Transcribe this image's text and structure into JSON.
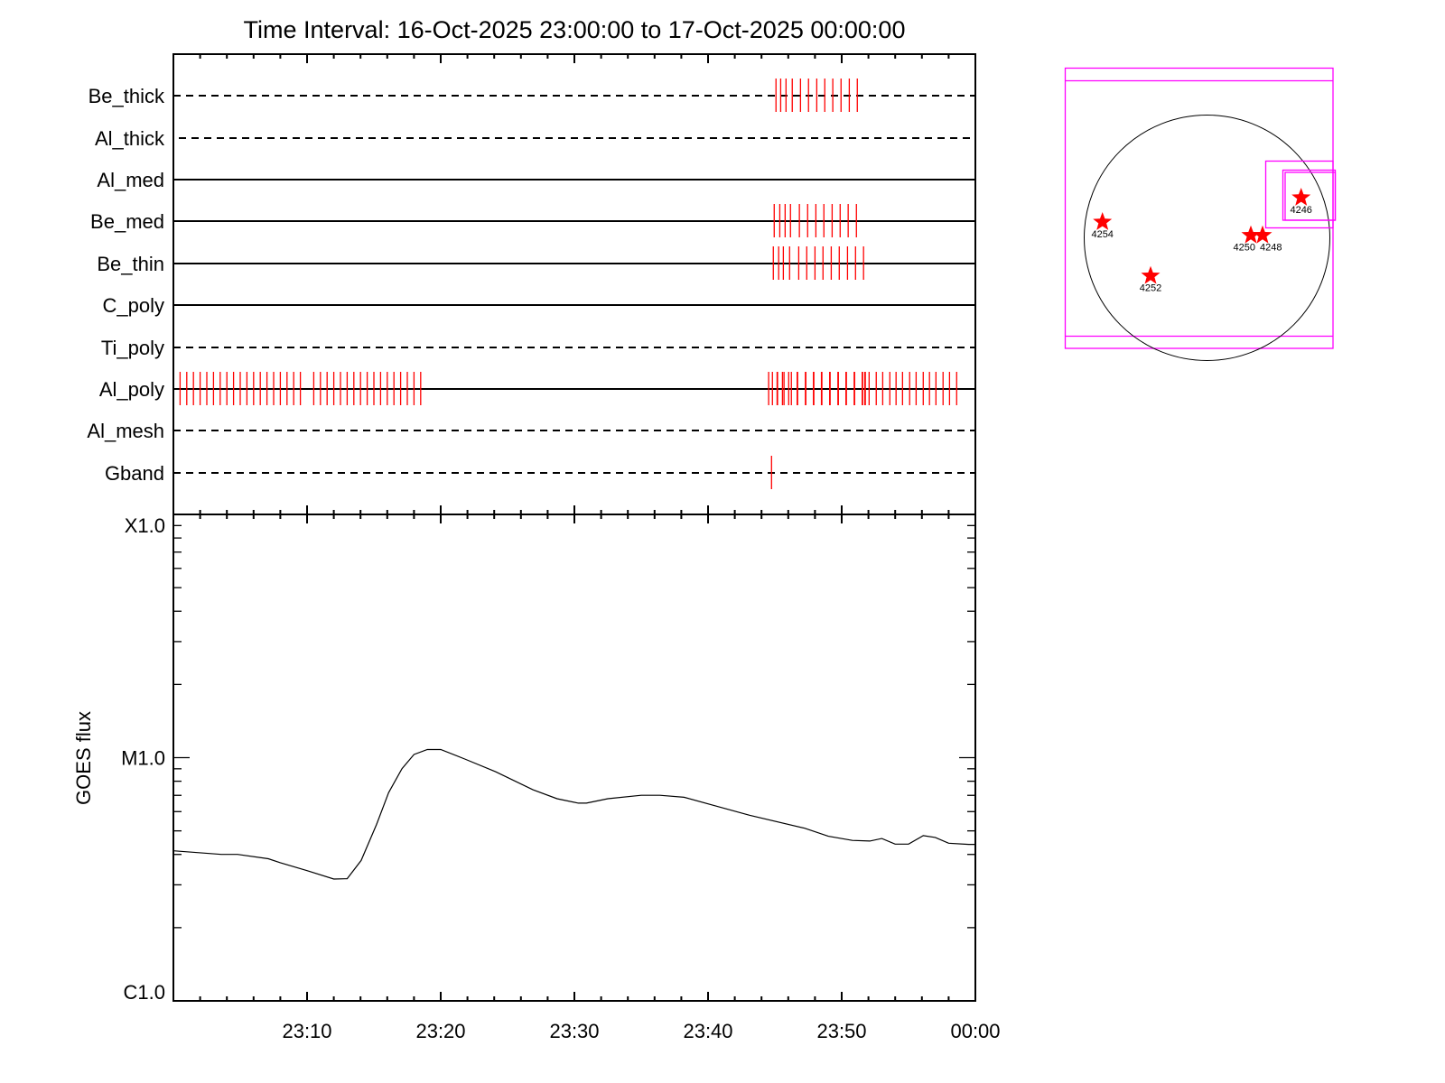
{
  "chart_data": [
    {
      "type": "timeline",
      "title": "Time Interval: 16-Oct-2025 23:00:00 to 17-Oct-2025 00:00:00",
      "xlim": [
        "23:00:00",
        "00:00:00"
      ],
      "rows": [
        {
          "name": "Be_thick",
          "line": "dashed",
          "events": [
            "23:45:05",
            "23:45:26",
            "23:45:50",
            "23:46:18",
            "23:46:55",
            "23:47:31",
            "23:48:08",
            "23:48:44",
            "23:49:20",
            "23:49:57",
            "23:50:34",
            "23:51:10"
          ]
        },
        {
          "name": "Al_thick",
          "line": "dashed",
          "events": []
        },
        {
          "name": "Al_med",
          "line": "solid",
          "events": []
        },
        {
          "name": "Be_med",
          "line": "solid",
          "events": [
            "23:44:57",
            "23:45:22",
            "23:45:46",
            "23:46:10",
            "23:46:50",
            "23:47:27",
            "23:48:04",
            "23:48:40",
            "23:49:17",
            "23:49:53",
            "23:50:29",
            "23:51:06"
          ]
        },
        {
          "name": "Be_thin",
          "line": "solid",
          "events": [
            "23:44:53",
            "23:45:17",
            "23:45:38",
            "23:46:06",
            "23:46:47",
            "23:47:23",
            "23:48:00",
            "23:48:36",
            "23:49:13",
            "23:49:49",
            "23:50:26",
            "23:51:02",
            "23:51:38"
          ]
        },
        {
          "name": "C_poly",
          "line": "solid",
          "events": []
        },
        {
          "name": "Ti_poly",
          "line": "dashed",
          "events": []
        },
        {
          "name": "Al_poly",
          "line": "solid",
          "events": [
            "23:00:00",
            "23:00:30",
            "23:01:00",
            "23:01:30",
            "23:02:00",
            "23:02:30",
            "23:03:00",
            "23:03:30",
            "23:04:00",
            "23:04:30",
            "23:05:00",
            "23:05:30",
            "23:06:00",
            "23:06:30",
            "23:07:00",
            "23:07:30",
            "23:08:00",
            "23:08:30",
            "23:09:00",
            "23:09:30",
            "23:10:30",
            "23:11:00",
            "23:11:30",
            "23:12:00",
            "23:12:30",
            "23:13:00",
            "23:13:30",
            "23:14:00",
            "23:14:30",
            "23:15:00",
            "23:15:30",
            "23:16:00",
            "23:16:30",
            "23:17:00",
            "23:17:30",
            "23:18:00",
            "23:18:30",
            "23:44:32",
            "23:44:49",
            "23:45:10",
            "23:45:12",
            "23:45:34",
            "23:45:41",
            "23:46:02",
            "23:46:14",
            "23:46:40",
            "23:46:42",
            "23:47:17",
            "23:47:19",
            "23:47:53",
            "23:47:55",
            "23:48:29",
            "23:48:31",
            "23:49:06",
            "23:49:08",
            "23:49:43",
            "23:49:45",
            "23:50:19",
            "23:50:21",
            "23:50:56",
            "23:50:58",
            "23:51:32",
            "23:51:34",
            "23:51:44",
            "23:51:46",
            "23:52:03",
            "23:52:35",
            "23:53:04",
            "23:53:36",
            "23:54:04",
            "23:54:33",
            "23:55:05",
            "23:55:34",
            "23:56:06",
            "23:56:34",
            "23:57:03",
            "23:57:35",
            "23:58:04",
            "23:58:36"
          ]
        },
        {
          "name": "Al_mesh",
          "line": "dashed",
          "events": []
        },
        {
          "name": "Gband",
          "line": "dashed",
          "events": [
            "23:44:45"
          ]
        }
      ],
      "event_color": "#ff0000"
    },
    {
      "type": "line",
      "ylabel": "GOES flux",
      "yscale": "log",
      "ylim": [
        1e-06,
        0.0001
      ],
      "yticks": [
        {
          "value": 1e-06,
          "label": "C1.0"
        },
        {
          "value": 1e-05,
          "label": "M1.0"
        },
        {
          "value": 0.0001,
          "label": "X1.0"
        }
      ],
      "xticks": [
        "23:10",
        "23:20",
        "23:30",
        "23:40",
        "23:50",
        "00:00"
      ],
      "series": [
        {
          "color": "#000000",
          "points": [
            [
              "23:00:00",
              4.14e-06
            ],
            [
              "23:03:35",
              4e-06
            ],
            [
              "23:04:48",
              4e-06
            ],
            [
              "23:07:06",
              3.84e-06
            ],
            [
              "23:08:00",
              3.7e-06
            ],
            [
              "23:10:00",
              3.43e-06
            ],
            [
              "23:12:00",
              3.17e-06
            ],
            [
              "23:13:00",
              3.18e-06
            ],
            [
              "23:14:03",
              3.78e-06
            ],
            [
              "23:15:12",
              5.32e-06
            ],
            [
              "23:16:06",
              7.18e-06
            ],
            [
              "23:17:06",
              9.01e-06
            ],
            [
              "23:18:00",
              1.03e-05
            ],
            [
              "23:19:00",
              1.08e-05
            ],
            [
              "23:20:00",
              1.08e-05
            ],
            [
              "23:21:48",
              9.87e-06
            ],
            [
              "23:24:06",
              8.75e-06
            ],
            [
              "23:26:54",
              7.38e-06
            ],
            [
              "23:28:42",
              6.78e-06
            ],
            [
              "23:30:18",
              6.5e-06
            ],
            [
              "23:30:54",
              6.5e-06
            ],
            [
              "23:32:30",
              6.78e-06
            ],
            [
              "23:35:00",
              7e-06
            ],
            [
              "23:36:24",
              7e-06
            ],
            [
              "23:38:12",
              6.87e-06
            ],
            [
              "23:40:24",
              6.37e-06
            ],
            [
              "23:43:06",
              5.8e-06
            ],
            [
              "23:47:12",
              5.13e-06
            ],
            [
              "23:49:00",
              4.75e-06
            ],
            [
              "23:50:48",
              4.57e-06
            ],
            [
              "23:52:06",
              4.54e-06
            ],
            [
              "23:53:00",
              4.65e-06
            ],
            [
              "23:54:00",
              4.41e-06
            ],
            [
              "23:55:00",
              4.41e-06
            ],
            [
              "23:56:06",
              4.78e-06
            ],
            [
              "23:57:00",
              4.7e-06
            ],
            [
              "23:58:00",
              4.45e-06
            ],
            [
              "23:59:30",
              4.4e-06
            ],
            [
              "00:00:00",
              4.4e-06
            ]
          ]
        }
      ]
    }
  ],
  "sun_map": {
    "disk_color": "#000000",
    "box_color": "#ff00ff",
    "star_color": "#ff0000",
    "regions": [
      {
        "label": "4254"
      },
      {
        "label": "4252"
      },
      {
        "label": "4250"
      },
      {
        "label": "4248"
      },
      {
        "label": "4246"
      }
    ]
  }
}
